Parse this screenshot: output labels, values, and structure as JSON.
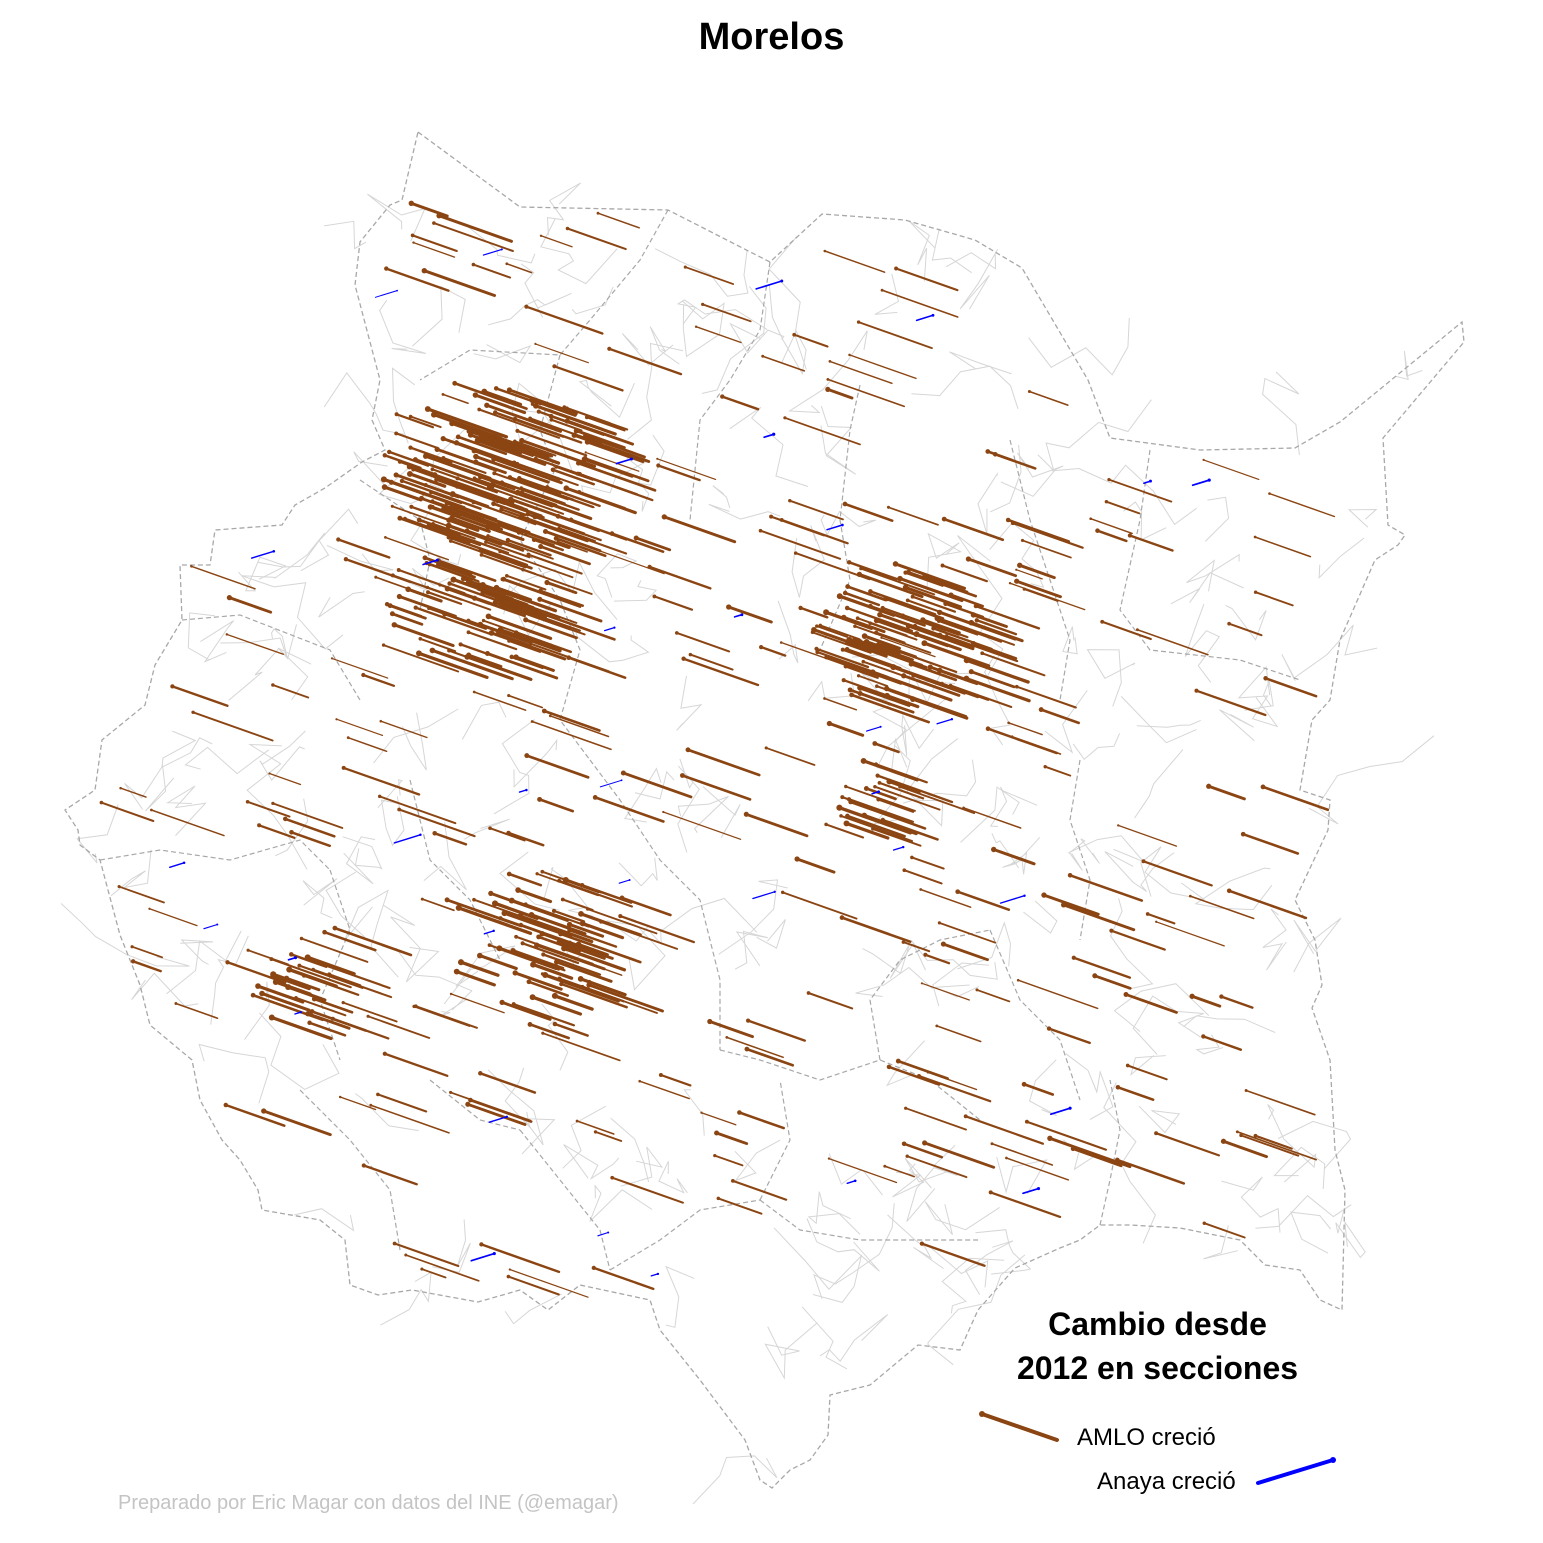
{
  "title": "Morelos",
  "legend": {
    "title_line1": "Cambio desde",
    "title_line2": "2012 en secciones",
    "amlo_label": "AMLO creció",
    "anaya_label": "Anaya creció",
    "amlo_color": "#8B4513",
    "anaya_color": "#0000FF"
  },
  "credit": "Preparado por Eric Magar con datos del INE (@emagar)",
  "colors": {
    "state_border": "#a8a8a8",
    "inner_lines": "#d6d6d6"
  }
}
